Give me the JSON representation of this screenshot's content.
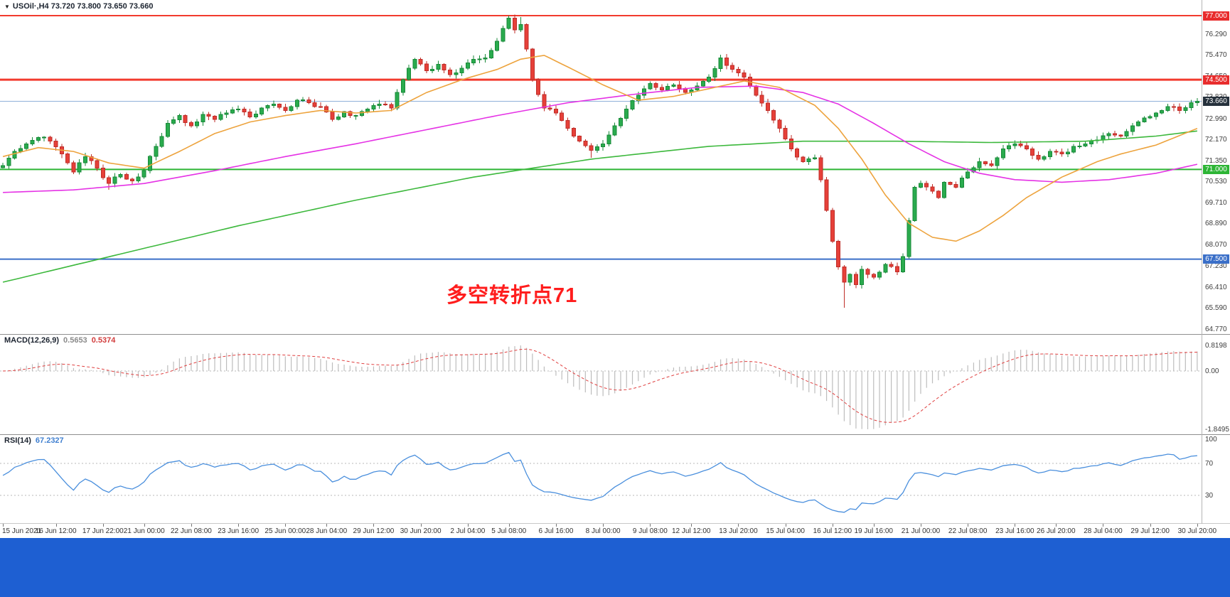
{
  "header": {
    "symbol_line": "USOil·,H4 73.720 73.800 73.650 73.660",
    "dropdown_icon": "▼"
  },
  "annotation": {
    "text": "多空转折点71",
    "color": "#ff1d1d"
  },
  "colors": {
    "up": "#2aab4e",
    "up_border": "#188a38",
    "down": "#e64039",
    "down_border": "#bf2d28",
    "ma_magenta": "#e532e5",
    "ma_orange": "#eda33d",
    "ma_green": "#3cb83c",
    "macd_hist": "#bdbdbd",
    "macd_signal": "#e04040",
    "rsi_line": "#4a8fdd",
    "separator": "#8f8f8f",
    "axis_border": "#b5b5b5",
    "level_dotted": "#b9b9b9",
    "bottom_bar": "#1e5fd2"
  },
  "chart_data": {
    "type": "candlestick",
    "symbol": "USOil",
    "timeframe": "H4",
    "ohlc_display": {
      "open": "73.720",
      "high": "73.800",
      "low": "73.650",
      "close": "73.660"
    },
    "bars": 204,
    "price_range": [
      64.58,
      77.0
    ],
    "price_axis_ticks": [
      "76.290",
      "75.470",
      "74.650",
      "73.830",
      "72.990",
      "72.170",
      "71.350",
      "70.530",
      "69.710",
      "68.890",
      "68.070",
      "67.230",
      "66.410",
      "65.590",
      "64.770"
    ],
    "price_badges": [
      {
        "text": "77.000",
        "price": 77.0,
        "bg": "#e82c2c"
      },
      {
        "text": "74.500",
        "price": 74.5,
        "bg": "#e82c2c"
      },
      {
        "text": "73.660",
        "price": 73.66,
        "bg": "#26313c"
      },
      {
        "text": "71.000",
        "price": 71.0,
        "bg": "#2db535"
      },
      {
        "text": "67.500",
        "price": 67.5,
        "bg": "#3a6fc8"
      }
    ],
    "hlines": [
      {
        "price": 77.0,
        "color": "#f23b2e",
        "width": 2
      },
      {
        "price": 74.5,
        "color": "#f23b2e",
        "width": 3
      },
      {
        "price": 73.66,
        "color": "#8fb0d9",
        "width": 1
      },
      {
        "price": 71.0,
        "color": "#2db535",
        "width": 2
      },
      {
        "price": 67.5,
        "color": "#3a6fc8",
        "width": 2
      }
    ],
    "close_anchors": [
      [
        0,
        71.15
      ],
      [
        2,
        71.7
      ],
      [
        4,
        72.0
      ],
      [
        6,
        72.25
      ],
      [
        8,
        72.1
      ],
      [
        10,
        71.6
      ],
      [
        12,
        70.9
      ],
      [
        14,
        71.5
      ],
      [
        16,
        71.05
      ],
      [
        18,
        70.45
      ],
      [
        20,
        70.8
      ],
      [
        22,
        70.55
      ],
      [
        24,
        70.95
      ],
      [
        26,
        71.9
      ],
      [
        28,
        72.8
      ],
      [
        30,
        73.1
      ],
      [
        32,
        72.7
      ],
      [
        34,
        73.15
      ],
      [
        36,
        72.95
      ],
      [
        38,
        73.2
      ],
      [
        40,
        73.35
      ],
      [
        42,
        73.05
      ],
      [
        44,
        73.4
      ],
      [
        46,
        73.55
      ],
      [
        48,
        73.3
      ],
      [
        50,
        73.7
      ],
      [
        52,
        73.6
      ],
      [
        54,
        73.45
      ],
      [
        56,
        72.95
      ],
      [
        58,
        73.25
      ],
      [
        60,
        73.1
      ],
      [
        62,
        73.35
      ],
      [
        64,
        73.55
      ],
      [
        66,
        73.4
      ],
      [
        68,
        74.5
      ],
      [
        70,
        75.3
      ],
      [
        72,
        74.85
      ],
      [
        74,
        75.1
      ],
      [
        76,
        74.7
      ],
      [
        78,
        74.95
      ],
      [
        80,
        75.3
      ],
      [
        82,
        75.35
      ],
      [
        84,
        76.0
      ],
      [
        86,
        76.9
      ],
      [
        87,
        76.45
      ],
      [
        88,
        76.65
      ],
      [
        89,
        75.7
      ],
      [
        90,
        74.5
      ],
      [
        92,
        73.4
      ],
      [
        94,
        73.2
      ],
      [
        96,
        72.6
      ],
      [
        98,
        72.1
      ],
      [
        100,
        71.75
      ],
      [
        102,
        72.0
      ],
      [
        104,
        72.7
      ],
      [
        106,
        73.35
      ],
      [
        108,
        73.9
      ],
      [
        110,
        74.35
      ],
      [
        112,
        74.1
      ],
      [
        114,
        74.3
      ],
      [
        116,
        74.0
      ],
      [
        118,
        74.25
      ],
      [
        120,
        74.6
      ],
      [
        122,
        75.35
      ],
      [
        124,
        74.9
      ],
      [
        126,
        74.6
      ],
      [
        128,
        73.9
      ],
      [
        130,
        73.3
      ],
      [
        132,
        72.6
      ],
      [
        134,
        71.8
      ],
      [
        136,
        71.3
      ],
      [
        138,
        71.45
      ],
      [
        139,
        70.6
      ],
      [
        140,
        69.4
      ],
      [
        141,
        68.2
      ],
      [
        142,
        67.2
      ],
      [
        143,
        66.6
      ],
      [
        144,
        66.9
      ],
      [
        145,
        66.5
      ],
      [
        146,
        67.1
      ],
      [
        148,
        66.8
      ],
      [
        150,
        67.3
      ],
      [
        152,
        67.0
      ],
      [
        153,
        67.6
      ],
      [
        154,
        69.0
      ],
      [
        155,
        70.3
      ],
      [
        156,
        70.45
      ],
      [
        158,
        70.15
      ],
      [
        159,
        69.9
      ],
      [
        160,
        70.5
      ],
      [
        162,
        70.3
      ],
      [
        164,
        70.9
      ],
      [
        166,
        71.3
      ],
      [
        168,
        71.15
      ],
      [
        170,
        71.8
      ],
      [
        172,
        72.0
      ],
      [
        174,
        71.8
      ],
      [
        176,
        71.4
      ],
      [
        178,
        71.7
      ],
      [
        180,
        71.6
      ],
      [
        182,
        71.9
      ],
      [
        184,
        72.0
      ],
      [
        186,
        72.15
      ],
      [
        188,
        72.4
      ],
      [
        190,
        72.3
      ],
      [
        192,
        72.7
      ],
      [
        194,
        73.0
      ],
      [
        196,
        73.2
      ],
      [
        198,
        73.45
      ],
      [
        200,
        73.3
      ],
      [
        202,
        73.6
      ],
      [
        203,
        73.66
      ]
    ],
    "wick_overrides": [
      [
        143,
        "low",
        65.6
      ],
      [
        86,
        "high",
        77.0
      ],
      [
        88,
        "high",
        76.95
      ],
      [
        122,
        "high",
        75.47
      ],
      [
        18,
        "low",
        70.2
      ],
      [
        100,
        "low",
        71.45
      ]
    ],
    "moving_averages": {
      "magenta": [
        [
          0,
          70.1
        ],
        [
          12,
          70.2
        ],
        [
          24,
          70.45
        ],
        [
          36,
          70.95
        ],
        [
          48,
          71.5
        ],
        [
          60,
          72.0
        ],
        [
          72,
          72.55
        ],
        [
          84,
          73.1
        ],
        [
          96,
          73.6
        ],
        [
          108,
          73.95
        ],
        [
          118,
          74.2
        ],
        [
          128,
          74.25
        ],
        [
          136,
          74.0
        ],
        [
          142,
          73.55
        ],
        [
          148,
          72.8
        ],
        [
          154,
          72.0
        ],
        [
          160,
          71.3
        ],
        [
          166,
          70.85
        ],
        [
          172,
          70.6
        ],
        [
          180,
          70.5
        ],
        [
          188,
          70.6
        ],
        [
          196,
          70.85
        ],
        [
          203,
          71.2
        ]
      ],
      "orange": [
        [
          0,
          71.5
        ],
        [
          6,
          71.85
        ],
        [
          12,
          71.7
        ],
        [
          18,
          71.25
        ],
        [
          24,
          71.05
        ],
        [
          30,
          71.7
        ],
        [
          36,
          72.4
        ],
        [
          42,
          72.85
        ],
        [
          48,
          73.1
        ],
        [
          54,
          73.3
        ],
        [
          60,
          73.2
        ],
        [
          66,
          73.3
        ],
        [
          72,
          74.0
        ],
        [
          78,
          74.5
        ],
        [
          84,
          74.9
        ],
        [
          88,
          75.3
        ],
        [
          92,
          75.45
        ],
        [
          96,
          75.0
        ],
        [
          102,
          74.3
        ],
        [
          108,
          73.7
        ],
        [
          114,
          73.85
        ],
        [
          120,
          74.15
        ],
        [
          126,
          74.45
        ],
        [
          132,
          74.2
        ],
        [
          138,
          73.5
        ],
        [
          142,
          72.6
        ],
        [
          146,
          71.4
        ],
        [
          150,
          70.0
        ],
        [
          154,
          68.9
        ],
        [
          158,
          68.35
        ],
        [
          162,
          68.2
        ],
        [
          166,
          68.6
        ],
        [
          170,
          69.2
        ],
        [
          174,
          69.9
        ],
        [
          180,
          70.7
        ],
        [
          186,
          71.3
        ],
        [
          190,
          71.6
        ],
        [
          196,
          71.95
        ],
        [
          203,
          72.6
        ]
      ],
      "green": [
        [
          0,
          66.6
        ],
        [
          20,
          67.7
        ],
        [
          40,
          68.8
        ],
        [
          60,
          69.8
        ],
        [
          80,
          70.7
        ],
        [
          100,
          71.4
        ],
        [
          120,
          71.9
        ],
        [
          136,
          72.1
        ],
        [
          152,
          72.1
        ],
        [
          168,
          72.05
        ],
        [
          184,
          72.1
        ],
        [
          196,
          72.3
        ],
        [
          203,
          72.5
        ]
      ]
    },
    "macd": {
      "label": "MACD(12,26,9)",
      "value_main": "0.5653",
      "value_signal": "0.5374",
      "params": [
        12,
        26,
        9
      ],
      "axis_labels": [
        "0.8198",
        "0.00",
        "-1.8495"
      ]
    },
    "rsi": {
      "label": "RSI(14)",
      "value": "67.2327",
      "period": 14,
      "levels": [
        70,
        30
      ],
      "axis_labels": [
        "100",
        "70",
        "30"
      ]
    },
    "time_labels": [
      [
        0,
        "15 Jun 2021"
      ],
      [
        9,
        "16 Jun 12:00"
      ],
      [
        17,
        "17 Jun 22:00"
      ],
      [
        24,
        "21 Jun 00:00"
      ],
      [
        32,
        "22 Jun 08:00"
      ],
      [
        40,
        "23 Jun 16:00"
      ],
      [
        48,
        "25 Jun 00:00"
      ],
      [
        55,
        "28 Jun 04:00"
      ],
      [
        63,
        "29 Jun 12:00"
      ],
      [
        71,
        "30 Jun 20:00"
      ],
      [
        79,
        "2 Jul 04:00"
      ],
      [
        86,
        "5 Jul 08:00"
      ],
      [
        94,
        "6 Jul 16:00"
      ],
      [
        102,
        "8 Jul 00:00"
      ],
      [
        110,
        "9 Jul 08:00"
      ],
      [
        117,
        "12 Jul 12:00"
      ],
      [
        125,
        "13 Jul 20:00"
      ],
      [
        133,
        "15 Jul 04:00"
      ],
      [
        141,
        "16 Jul 12:00"
      ],
      [
        148,
        "19 Jul 16:00"
      ],
      [
        156,
        "21 Jul 00:00"
      ],
      [
        164,
        "22 Jul 08:00"
      ],
      [
        172,
        "23 Jul 16:00"
      ],
      [
        179,
        "26 Jul 20:00"
      ],
      [
        187,
        "28 Jul 04:00"
      ],
      [
        195,
        "29 Jul 12:00"
      ],
      [
        203,
        "30 Jul 20:00"
      ]
    ],
    "noise_seed": 7
  }
}
